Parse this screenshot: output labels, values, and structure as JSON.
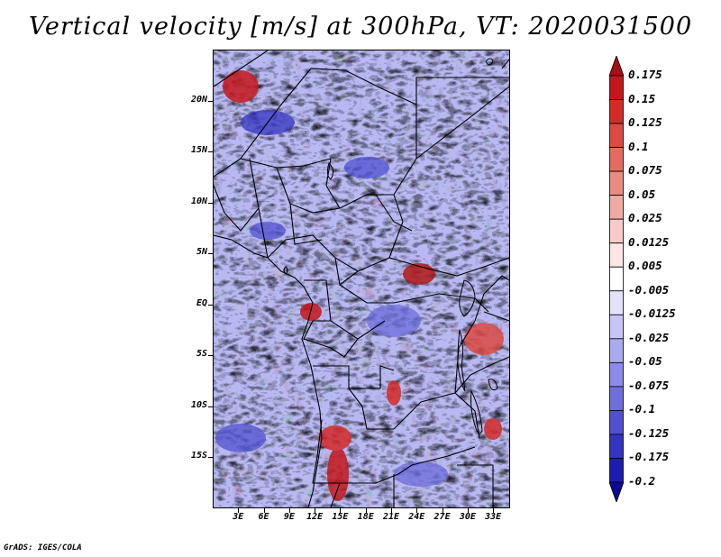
{
  "title": "Vertical velocity [m/s] at 300hPa, VT: 2020031500",
  "footer": "GrADS: IGES/COLA",
  "map": {
    "variable": "Vertical velocity",
    "units": "m/s",
    "level": "300hPa",
    "valid_time": "2020031500",
    "lon_range": [
      0,
      35
    ],
    "lat_range": [
      -20,
      25
    ],
    "lat_labels": [
      "20N",
      "15N",
      "10N",
      "5N",
      "EQ",
      "5S",
      "10S",
      "15S"
    ],
    "lat_values": [
      20,
      15,
      10,
      5,
      0,
      -5,
      -10,
      -15
    ],
    "lon_labels": [
      "3E",
      "6E",
      "9E",
      "12E",
      "15E",
      "18E",
      "21E",
      "24E",
      "27E",
      "30E",
      "33E"
    ],
    "lon_values": [
      3,
      6,
      9,
      12,
      15,
      18,
      21,
      24,
      27,
      30,
      33
    ]
  },
  "colorbar": {
    "labels": [
      "0.175",
      "0.15",
      "0.125",
      "0.1",
      "0.075",
      "0.05",
      "0.025",
      "0.0125",
      "0.005",
      "-0.005",
      "-0.0125",
      "-0.025",
      "-0.05",
      "-0.075",
      "-0.1",
      "-0.125",
      "-0.175",
      "-0.2"
    ],
    "colors": [
      "#a50f15",
      "#c4161c",
      "#d42a28",
      "#dc4a44",
      "#e46a62",
      "#ea8a82",
      "#f0aaa4",
      "#f6cbc6",
      "#fbe6e3",
      "#ffffff",
      "#e2e2fb",
      "#c6c6f6",
      "#aaaaf0",
      "#8c8ce8",
      "#6e6ede",
      "#5050d2",
      "#3434c2",
      "#1c1cae",
      "#0a0a92"
    ]
  }
}
